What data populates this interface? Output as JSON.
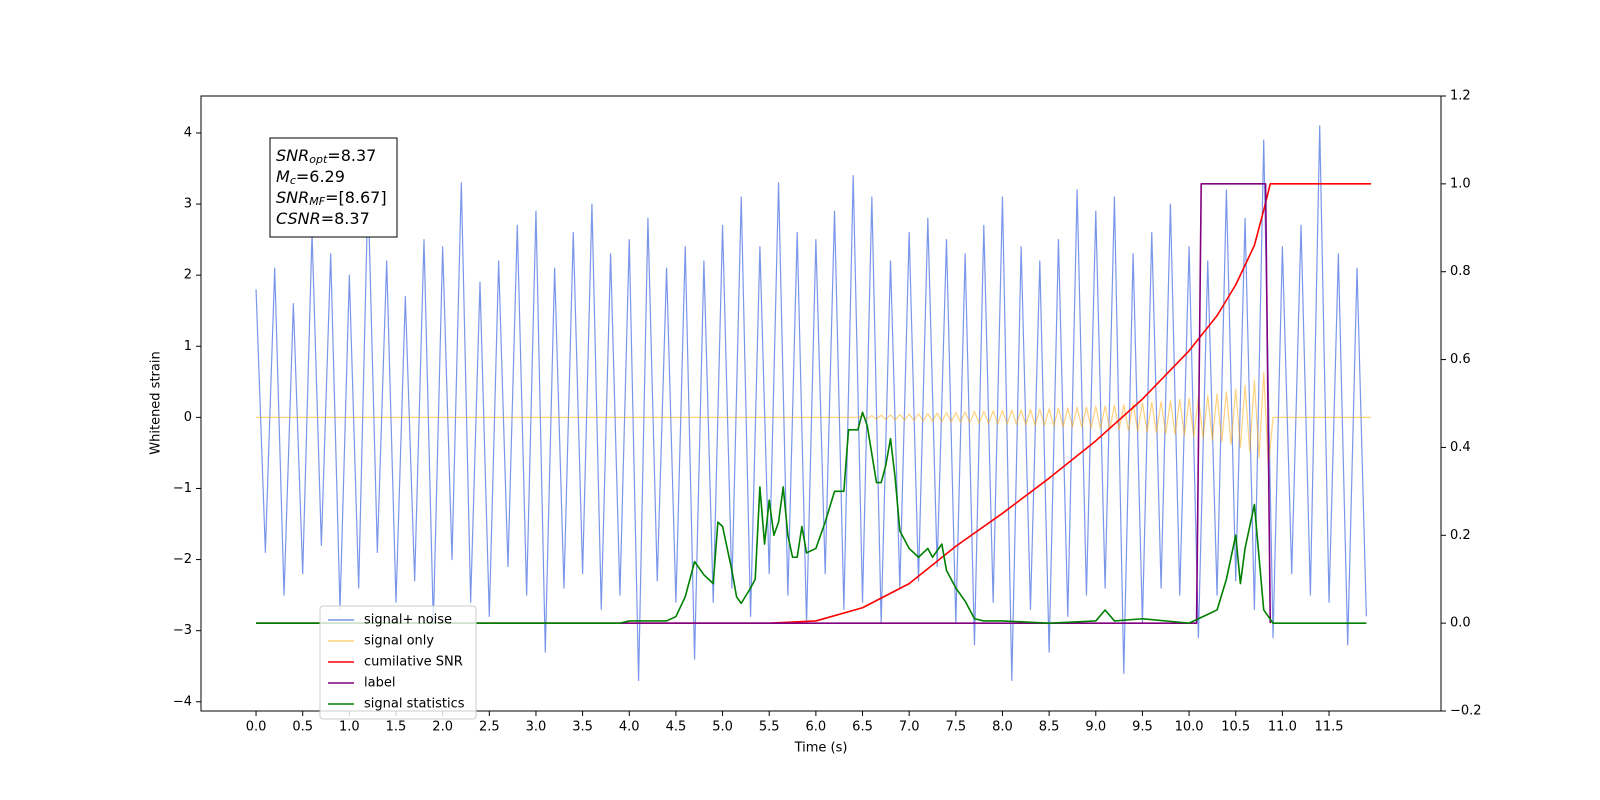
{
  "chart_data": {
    "type": "line",
    "xlabel": "Time (s)",
    "ylabel": "Whitened strain",
    "xlim": [
      -0.59,
      12.7
    ],
    "ylim": [
      -4.13,
      4.52
    ],
    "y2lim": [
      -0.2,
      1.2
    ],
    "xticks": [
      {
        "value": 0,
        "label": "0.0"
      },
      0.5,
      {
        "value": 1,
        "label": "1.0"
      },
      1.5,
      {
        "value": 2,
        "label": "2.0"
      },
      2.5,
      {
        "value": 3,
        "label": "3.0"
      },
      3.5,
      {
        "value": 4,
        "label": "4.0"
      },
      4.5,
      {
        "value": 5,
        "label": "5.0"
      },
      5.5,
      {
        "value": 6,
        "label": "6.0"
      },
      6.5,
      {
        "value": 7,
        "label": "7.0"
      },
      7.5,
      {
        "value": 8,
        "label": "8.0"
      },
      8.5,
      {
        "value": 9,
        "label": "9.0"
      },
      9.5,
      {
        "value": 10,
        "label": "10.0"
      },
      10.5,
      {
        "value": 11,
        "label": "11.0"
      },
      11.5
    ],
    "yticks": [
      {
        "value": -4,
        "label": "−4"
      },
      {
        "value": -3,
        "label": "−3"
      },
      {
        "value": -2,
        "label": "−2"
      },
      {
        "value": -1,
        "label": "−1"
      },
      0,
      1,
      2,
      3,
      4
    ],
    "y2ticks": [
      {
        "value": -0.2,
        "label": "−0.2"
      },
      {
        "value": 0,
        "label": "0.0"
      },
      0.2,
      0.4,
      0.6,
      0.8,
      {
        "value": 1,
        "label": "1.0"
      },
      1.2
    ],
    "legend": "lower left",
    "annotation": [
      {
        "symbol": "SNR",
        "subscript": "opt",
        "text": "=8.37"
      },
      {
        "symbol": "M",
        "subscript": "c",
        "text": "=6.29"
      },
      {
        "symbol": "SNR",
        "subscript": "MF",
        "text": "=[8.67]"
      },
      {
        "symbol": "CSNR",
        "text": "=8.37"
      }
    ],
    "series": [
      {
        "name": "signal+ noise",
        "color": "#4169e1",
        "alpha": 0.7,
        "axis": "y",
        "x": [
          0,
          0.1,
          0.2,
          0.3,
          0.4,
          0.5,
          0.6,
          0.7,
          0.8,
          0.9,
          1,
          1.1,
          1.2,
          1.3,
          1.4,
          1.5,
          1.6,
          1.7,
          1.8,
          1.9,
          2,
          2.1,
          2.2,
          2.3,
          2.4,
          2.5,
          2.6,
          2.7,
          2.8,
          2.9,
          3,
          3.1,
          3.2,
          3.3,
          3.4,
          3.5,
          3.6,
          3.7,
          3.8,
          3.9,
          4,
          4.1,
          4.2,
          4.3,
          4.4,
          4.5,
          4.6,
          4.7,
          4.8,
          4.9,
          5,
          5.1,
          5.2,
          5.3,
          5.4,
          5.5,
          5.6,
          5.7,
          5.8,
          5.9,
          6,
          6.1,
          6.2,
          6.3,
          6.4,
          6.5,
          6.6,
          6.7,
          6.8,
          6.9,
          7,
          7.1,
          7.2,
          7.3,
          7.4,
          7.5,
          7.6,
          7.7,
          7.8,
          7.9,
          8,
          8.1,
          8.2,
          8.3,
          8.4,
          8.5,
          8.6,
          8.7,
          8.8,
          8.9,
          9,
          9.1,
          9.2,
          9.3,
          9.4,
          9.5,
          9.6,
          9.7,
          9.8,
          9.9,
          10,
          10.1,
          10.2,
          10.3,
          10.4,
          10.5,
          10.6,
          10.7,
          10.8,
          10.9,
          11,
          11.1,
          11.2,
          11.3,
          11.4,
          11.5,
          11.6,
          11.7,
          11.8,
          11.9
        ],
        "values": [
          1.8,
          -1.9,
          2.1,
          -2.5,
          1.6,
          -2.2,
          2.6,
          -1.8,
          2.3,
          -2.7,
          2.0,
          -2.4,
          3.2,
          -1.9,
          2.2,
          -2.6,
          1.7,
          -2.3,
          2.5,
          -2.9,
          2.4,
          -2.0,
          3.3,
          -2.6,
          1.9,
          -2.8,
          2.2,
          -2.1,
          2.7,
          -2.5,
          2.9,
          -3.3,
          2.1,
          -2.4,
          2.6,
          -2.2,
          3.0,
          -2.7,
          2.3,
          -2.5,
          2.5,
          -3.7,
          2.8,
          -2.3,
          2.1,
          -2.6,
          2.4,
          -3.4,
          2.2,
          -2.6,
          2.7,
          -2.4,
          3.1,
          -2.8,
          2.4,
          -2.2,
          3.3,
          -2.5,
          2.6,
          -2.9,
          2.5,
          -2.2,
          2.9,
          -2.7,
          3.4,
          -2.6,
          3.1,
          -2.9,
          2.2,
          -2.4,
          2.6,
          -2.3,
          2.8,
          -2.1,
          2.5,
          -2.9,
          2.3,
          -3.2,
          2.7,
          -2.6,
          3.1,
          -3.7,
          2.4,
          -2.7,
          2.2,
          -3.3,
          2.5,
          -2.8,
          3.2,
          -2.5,
          2.9,
          -2.4,
          3.1,
          -3.6,
          2.3,
          -2.9,
          2.6,
          -2.4,
          3.0,
          -2.5,
          2.4,
          -3.1,
          2.2,
          -2.5,
          3.2,
          -2.3,
          2.8,
          -2.7,
          3.9,
          -3.1,
          2.4,
          -2.2,
          2.7,
          -2.5,
          4.1,
          -2.6,
          2.3,
          -3.2,
          2.1,
          -2.8
        ]
      },
      {
        "name": "signal only",
        "color": "#ffa500",
        "alpha": 0.5,
        "axis": "y",
        "x": [
          0,
          6.45,
          6.5,
          6.55,
          6.6,
          6.65,
          6.7,
          6.75,
          6.8,
          6.85,
          6.9,
          6.95,
          7,
          7.05,
          7.1,
          7.15,
          7.2,
          7.25,
          7.3,
          7.35,
          7.4,
          7.45,
          7.5,
          7.55,
          7.6,
          7.65,
          7.7,
          7.75,
          7.8,
          7.85,
          7.9,
          7.95,
          8,
          8.05,
          8.1,
          8.15,
          8.2,
          8.25,
          8.3,
          8.35,
          8.4,
          8.45,
          8.5,
          8.55,
          8.6,
          8.65,
          8.7,
          8.75,
          8.8,
          8.85,
          8.9,
          8.95,
          9,
          9.05,
          9.1,
          9.15,
          9.2,
          9.25,
          9.3,
          9.35,
          9.4,
          9.45,
          9.5,
          9.55,
          9.6,
          9.65,
          9.7,
          9.75,
          9.8,
          9.85,
          9.9,
          9.95,
          10,
          10.05,
          10.1,
          10.15,
          10.2,
          10.25,
          10.3,
          10.35,
          10.4,
          10.45,
          10.5,
          10.55,
          10.6,
          10.65,
          10.7,
          10.75,
          10.8,
          10.85,
          10.9,
          11.95
        ],
        "values": [
          0,
          0,
          0.02,
          -0.02,
          0.025,
          -0.025,
          0.03,
          -0.03,
          0.035,
          -0.035,
          0.04,
          -0.04,
          0.045,
          -0.045,
          0.05,
          -0.05,
          0.055,
          -0.055,
          0.06,
          -0.06,
          0.065,
          -0.065,
          0.07,
          -0.07,
          0.075,
          -0.075,
          0.08,
          -0.08,
          0.085,
          -0.085,
          0.09,
          -0.09,
          0.095,
          -0.095,
          0.1,
          -0.1,
          0.105,
          -0.105,
          0.11,
          -0.11,
          0.115,
          -0.115,
          0.12,
          -0.12,
          0.125,
          -0.13,
          0.13,
          -0.135,
          0.14,
          -0.14,
          0.145,
          -0.15,
          0.155,
          -0.16,
          0.16,
          -0.165,
          0.17,
          -0.175,
          0.18,
          -0.185,
          0.19,
          -0.195,
          0.2,
          -0.205,
          0.21,
          -0.215,
          0.22,
          -0.23,
          0.235,
          -0.24,
          0.25,
          -0.255,
          0.265,
          -0.275,
          0.285,
          -0.295,
          0.305,
          -0.32,
          0.33,
          -0.345,
          0.36,
          -0.38,
          0.4,
          -0.42,
          0.45,
          -0.48,
          0.52,
          -0.57,
          0.63,
          -0.7,
          0,
          0
        ]
      },
      {
        "name": "cumilative SNR",
        "color": "#ff0000",
        "axis": "y2",
        "x": [
          0,
          5.5,
          6,
          6.5,
          7,
          7.5,
          8,
          8.5,
          9,
          9.5,
          10,
          10.3,
          10.5,
          10.7,
          10.8,
          10.87,
          11.95
        ],
        "values": [
          0,
          0,
          0.005,
          0.035,
          0.09,
          0.175,
          0.25,
          0.33,
          0.415,
          0.51,
          0.62,
          0.7,
          0.77,
          0.86,
          0.94,
          1,
          1
        ]
      },
      {
        "name": "label",
        "color": "#800080",
        "axis": "y2",
        "x": [
          0,
          10.08,
          10.13,
          10.82,
          10.87
        ],
        "values": [
          0,
          0,
          1,
          1,
          0
        ]
      },
      {
        "name": "signal statistics",
        "color": "#008000",
        "axis": "y2",
        "x": [
          0,
          3.9,
          4,
          4.4,
          4.5,
          4.6,
          4.7,
          4.8,
          4.9,
          4.95,
          5,
          5.1,
          5.15,
          5.2,
          5.3,
          5.35,
          5.4,
          5.45,
          5.5,
          5.55,
          5.6,
          5.65,
          5.7,
          5.75,
          5.8,
          5.85,
          5.9,
          6,
          6.1,
          6.2,
          6.3,
          6.35,
          6.45,
          6.5,
          6.55,
          6.65,
          6.7,
          6.75,
          6.8,
          6.85,
          6.9,
          7,
          7.1,
          7.2,
          7.25,
          7.35,
          7.4,
          7.5,
          7.6,
          7.7,
          7.8,
          8,
          8.5,
          9,
          9.1,
          9.2,
          9.5,
          10,
          10.2,
          10.3,
          10.4,
          10.5,
          10.55,
          10.6,
          10.7,
          10.8,
          10.9,
          11.9
        ],
        "values": [
          0,
          0,
          0.005,
          0.005,
          0.015,
          0.06,
          0.14,
          0.11,
          0.09,
          0.23,
          0.22,
          0.12,
          0.06,
          0.045,
          0.08,
          0.1,
          0.31,
          0.18,
          0.28,
          0.2,
          0.23,
          0.31,
          0.2,
          0.15,
          0.15,
          0.22,
          0.16,
          0.17,
          0.23,
          0.3,
          0.3,
          0.44,
          0.44,
          0.48,
          0.45,
          0.32,
          0.32,
          0.36,
          0.42,
          0.33,
          0.21,
          0.17,
          0.15,
          0.17,
          0.15,
          0.18,
          0.12,
          0.08,
          0.05,
          0.01,
          0.005,
          0.005,
          0,
          0.005,
          0.03,
          0.005,
          0.01,
          0,
          0.02,
          0.03,
          0.1,
          0.2,
          0.09,
          0.17,
          0.27,
          0.03,
          0,
          0
        ]
      }
    ]
  }
}
